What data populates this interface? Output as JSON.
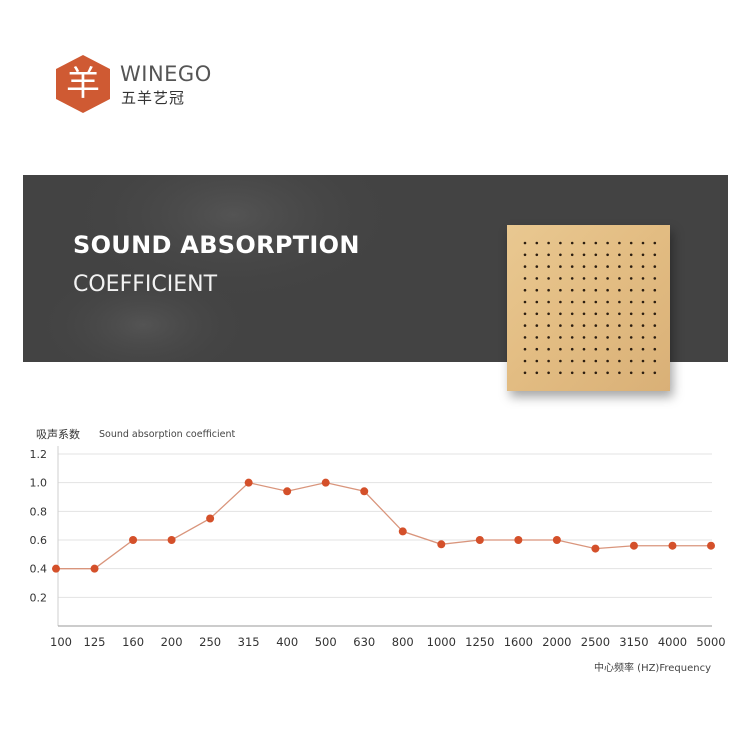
{
  "brand": {
    "name": "WINEGO",
    "name_cn": "五羊艺冠",
    "logo_glyph": "羊",
    "logo_color": "#cf5a33"
  },
  "banner": {
    "title": "SOUND ABSORPTION",
    "subtitle": "COEFFICIENT",
    "background": "#434343"
  },
  "chart_data": {
    "type": "line",
    "ylabel_cn": "吸声系数",
    "ylabel": "Sound absorption coefficient",
    "xlabel": "中心频率 (HZ)Frequency",
    "categories": [
      "100",
      "125",
      "160",
      "200",
      "250",
      "315",
      "400",
      "500",
      "630",
      "800",
      "1000",
      "1250",
      "1600",
      "2000",
      "2500",
      "3150",
      "4000",
      "5000"
    ],
    "series": [
      {
        "values": [
          0.4,
          0.4,
          0.6,
          0.6,
          0.75,
          1.0,
          0.94,
          1.0,
          0.94,
          0.66,
          0.57,
          0.6,
          0.6,
          0.6,
          0.54,
          0.56,
          0.56,
          0.56
        ]
      }
    ],
    "yticks": [
      "1.2",
      "1.0",
      "0.8",
      "0.6",
      "0.4",
      "0.2"
    ],
    "ylim": [
      0,
      1.2
    ],
    "grid": true,
    "line_color": "#d9957c",
    "marker_color": "#d4502a"
  }
}
